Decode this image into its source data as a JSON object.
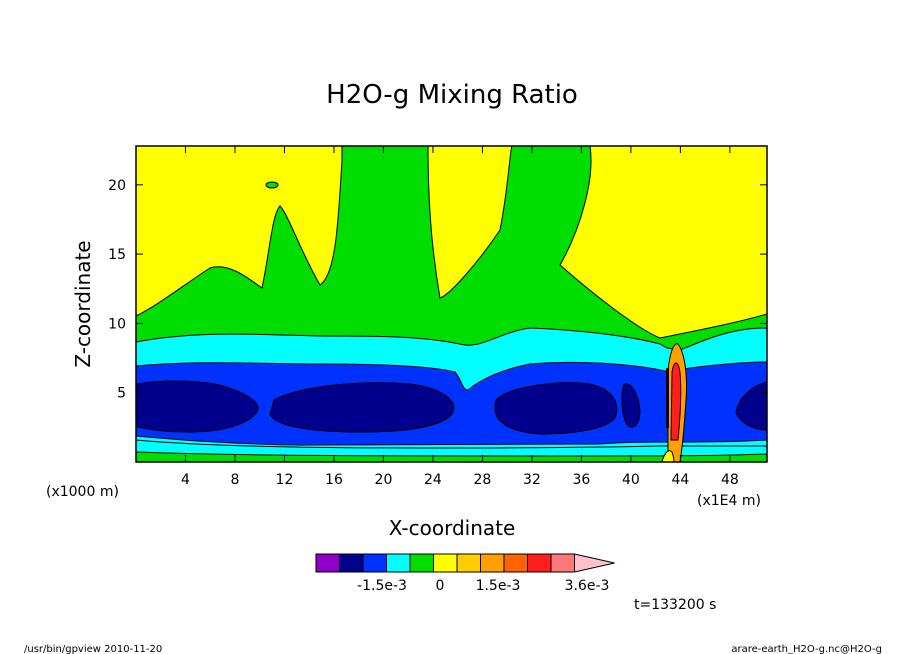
{
  "footer": {
    "left": "/usr/bin/gpview  2010-11-20",
    "right": "arare-earth_H2O-g.nc@H2O-g"
  },
  "chart_data": {
    "type": "heatmap",
    "title": "H2O-g Mixing Ratio",
    "xlabel": "X-coordinate",
    "ylabel": "Z-coordinate",
    "x_unit_left": "(x1000 m)",
    "x_unit_right": "(x1E4 m)",
    "time_label": "t=133200 s",
    "xlim": [
      0,
      51
    ],
    "ylim": [
      0,
      22.8
    ],
    "x_ticks": [
      4,
      8,
      12,
      16,
      20,
      24,
      28,
      32,
      36,
      40,
      44,
      48
    ],
    "y_ticks": [
      5,
      10,
      15,
      20
    ],
    "grid": false,
    "colorbar": {
      "colors": [
        "#8c00c8",
        "#00008c",
        "#0032ff",
        "#00ffff",
        "#00dd00",
        "#ffff00",
        "#ffcc00",
        "#ffa000",
        "#ff6400",
        "#ff1e1e",
        "#ff7878",
        "#ffc0cb"
      ],
      "tick_labels": [
        "-1.5e-3",
        "0",
        "1.5e-3",
        "3.6e-3"
      ]
    },
    "bands": [
      {
        "level": "yellow",
        "color": "#ffff00",
        "description_level": 6
      },
      {
        "level": "green",
        "color": "#00dd00",
        "description_level": 5
      },
      {
        "level": "cyan",
        "color": "#00ffff",
        "description_level": 4
      },
      {
        "level": "blue",
        "color": "#0032ff",
        "description_level": 3
      },
      {
        "level": "navy",
        "color": "#00008c",
        "description_level": 2
      }
    ]
  }
}
